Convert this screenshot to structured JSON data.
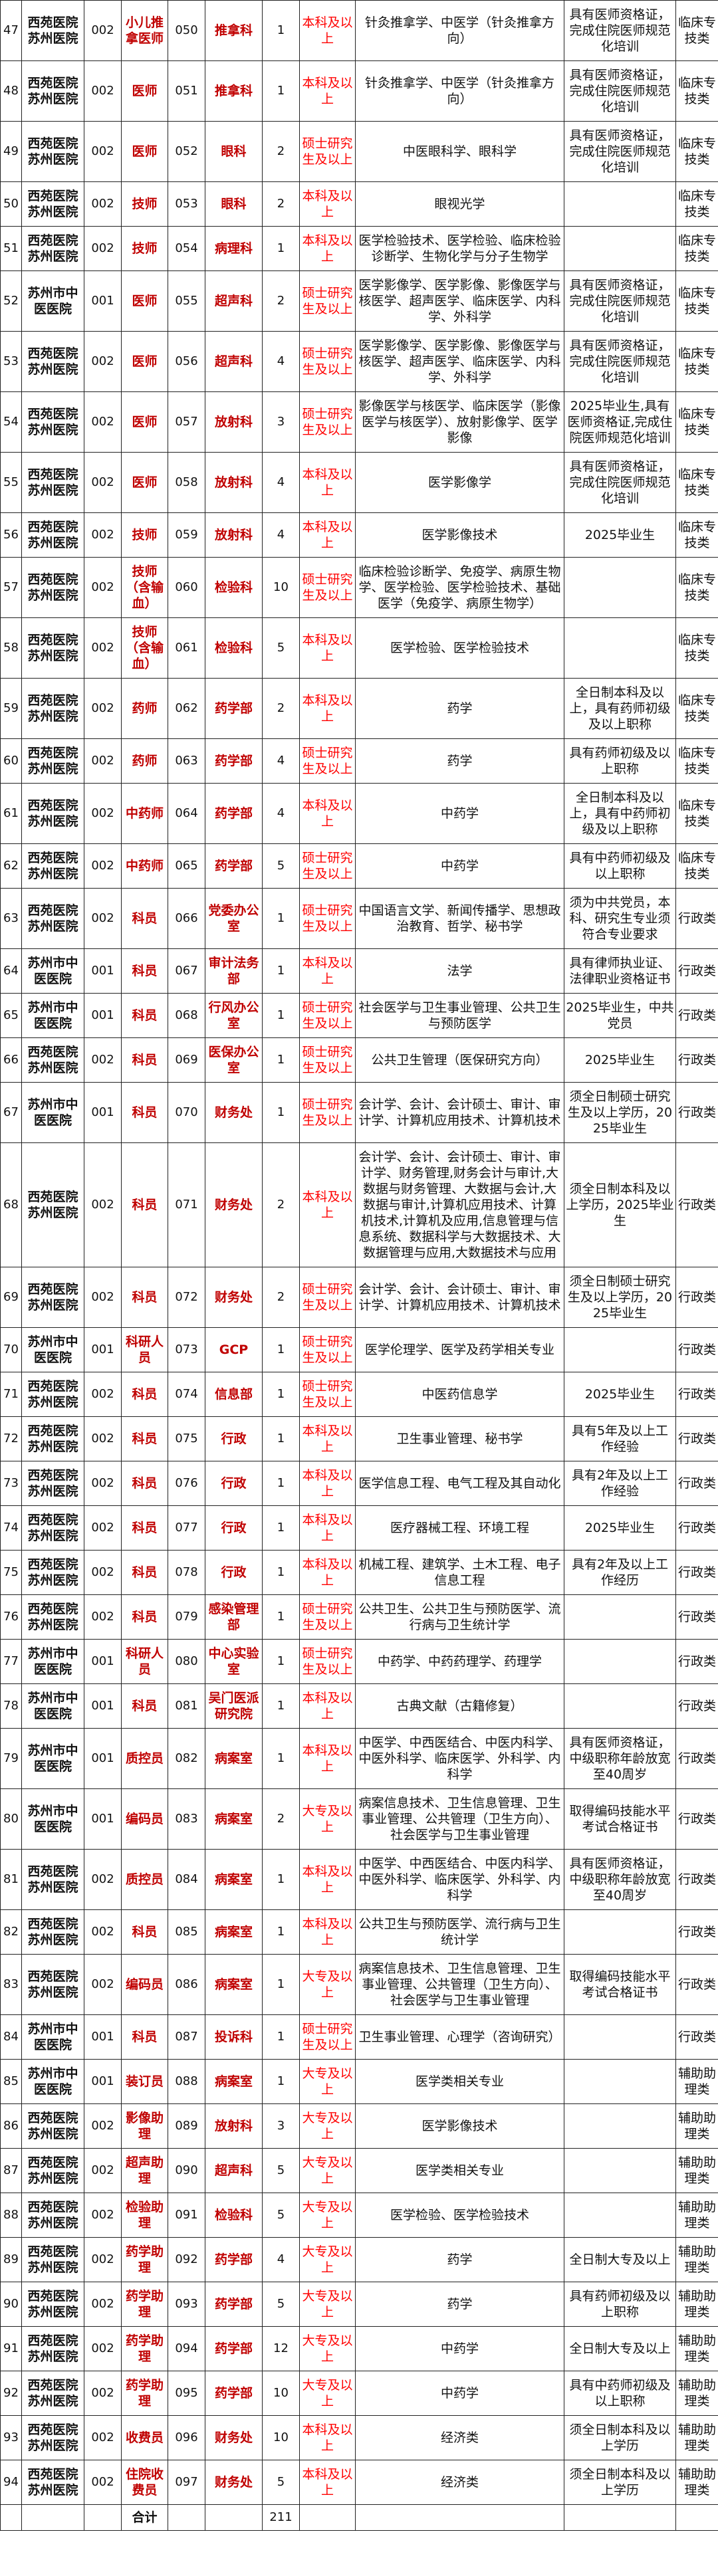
{
  "rows": [
    {
      "no": "47",
      "hospital": "西苑医院苏州医院",
      "hospital_code": "002",
      "position": "小儿推拿医师",
      "position_code": "050",
      "department": "推拿科",
      "count": "1",
      "education": "本科及以上",
      "major": "针灸推拿学、中医学（针灸推拿方向）",
      "remark": "具有医师资格证，完成住院医师规范化培训",
      "category": "临床专技类"
    },
    {
      "no": "48",
      "hospital": "西苑医院苏州医院",
      "hospital_code": "002",
      "position": "医师",
      "position_code": "051",
      "department": "推拿科",
      "count": "1",
      "education": "本科及以上",
      "major": "针灸推拿学、中医学（针灸推拿方向）",
      "remark": "具有医师资格证，完成住院医师规范化培训",
      "category": "临床专技类"
    },
    {
      "no": "49",
      "hospital": "西苑医院苏州医院",
      "hospital_code": "002",
      "position": "医师",
      "position_code": "052",
      "department": "眼科",
      "count": "2",
      "education": "硕士研究生及以上",
      "major": "中医眼科学、眼科学",
      "remark": "具有医师资格证，完成住院医师规范化培训",
      "category": "临床专技类"
    },
    {
      "no": "50",
      "hospital": "西苑医院苏州医院",
      "hospital_code": "002",
      "position": "技师",
      "position_code": "053",
      "department": "眼科",
      "count": "2",
      "education": "本科及以上",
      "major": "眼视光学",
      "remark": "",
      "category": "临床专技类"
    },
    {
      "no": "51",
      "hospital": "西苑医院苏州医院",
      "hospital_code": "002",
      "position": "技师",
      "position_code": "054",
      "department": "病理科",
      "count": "1",
      "education": "本科及以上",
      "major": "医学检验技术、医学检验、临床检验诊断学、生物化学与分子生物学",
      "remark": "",
      "category": "临床专技类"
    },
    {
      "no": "52",
      "hospital": "苏州市中医医院",
      "hospital_code": "001",
      "position": "医师",
      "position_code": "055",
      "department": "超声科",
      "count": "2",
      "education": "硕士研究生及以上",
      "major": "医学影像学、医学影像、影像医学与核医学、超声医学、临床医学、内科学、外科学",
      "remark": "具有医师资格证，完成住院医师规范化培训",
      "category": "临床专技类"
    },
    {
      "no": "53",
      "hospital": "西苑医院苏州医院",
      "hospital_code": "002",
      "position": "医师",
      "position_code": "056",
      "department": "超声科",
      "count": "4",
      "education": "硕士研究生及以上",
      "major": "医学影像学、医学影像、影像医学与核医学、超声医学、临床医学、内科学、外科学",
      "remark": "具有医师资格证，完成住院医师规范化培训",
      "category": "临床专技类"
    },
    {
      "no": "54",
      "hospital": "西苑医院苏州医院",
      "hospital_code": "002",
      "position": "医师",
      "position_code": "057",
      "department": "放射科",
      "count": "3",
      "education": "硕士研究生及以上",
      "major": "影像医学与核医学、临床医学（影像医学与核医学）、放射影像学、医学影像",
      "remark": "2025毕业生,具有医师资格证,完成住院医师规范化培训",
      "category": "临床专技类"
    },
    {
      "no": "55",
      "hospital": "西苑医院苏州医院",
      "hospital_code": "002",
      "position": "医师",
      "position_code": "058",
      "department": "放射科",
      "count": "4",
      "education": "本科及以上",
      "major": "医学影像学",
      "remark": "具有医师资格证，完成住院医师规范化培训",
      "category": "临床专技类"
    },
    {
      "no": "56",
      "hospital": "西苑医院苏州医院",
      "hospital_code": "002",
      "position": "技师",
      "position_code": "059",
      "department": "放射科",
      "count": "4",
      "education": "本科及以上",
      "major": "医学影像技术",
      "remark": "2025毕业生",
      "category": "临床专技类"
    },
    {
      "no": "57",
      "hospital": "西苑医院苏州医院",
      "hospital_code": "002",
      "position": "技师（含输血）",
      "position_code": "060",
      "department": "检验科",
      "count": "10",
      "education": "硕士研究生及以上",
      "major": "临床检验诊断学、免疫学、病原生物学、医学检验、医学检验技术、基础医学（免疫学、病原生物学）",
      "remark": "",
      "category": "临床专技类"
    },
    {
      "no": "58",
      "hospital": "西苑医院苏州医院",
      "hospital_code": "002",
      "position": "技师（含输血）",
      "position_code": "061",
      "department": "检验科",
      "count": "5",
      "education": "本科及以上",
      "major": "医学检验、医学检验技术",
      "remark": "",
      "category": "临床专技类"
    },
    {
      "no": "59",
      "hospital": "西苑医院苏州医院",
      "hospital_code": "002",
      "position": "药师",
      "position_code": "062",
      "department": "药学部",
      "count": "2",
      "education": "本科及以上",
      "major": "药学",
      "remark": "全日制本科及以上，具有药师初级及以上职称",
      "category": "临床专技类"
    },
    {
      "no": "60",
      "hospital": "西苑医院苏州医院",
      "hospital_code": "002",
      "position": "药师",
      "position_code": "063",
      "department": "药学部",
      "count": "4",
      "education": "硕士研究生及以上",
      "major": "药学",
      "remark": "具有药师初级及以上职称",
      "category": "临床专技类"
    },
    {
      "no": "61",
      "hospital": "西苑医院苏州医院",
      "hospital_code": "002",
      "position": "中药师",
      "position_code": "064",
      "department": "药学部",
      "count": "4",
      "education": "本科及以上",
      "major": "中药学",
      "remark": "全日制本科及以上，具有中药师初级及以上职称",
      "category": "临床专技类"
    },
    {
      "no": "62",
      "hospital": "西苑医院苏州医院",
      "hospital_code": "002",
      "position": "中药师",
      "position_code": "065",
      "department": "药学部",
      "count": "5",
      "education": "硕士研究生及以上",
      "major": "中药学",
      "remark": "具有中药师初级及以上职称",
      "category": "临床专技类"
    },
    {
      "no": "63",
      "hospital": "西苑医院苏州医院",
      "hospital_code": "002",
      "position": "科员",
      "position_code": "066",
      "department": "党委办公室",
      "count": "1",
      "education": "硕士研究生及以上",
      "major": "中国语言文学、新闻传播学、思想政治教育、哲学、秘书学",
      "remark": "须为中共党员，本科、研究生专业须符合专业要求",
      "category": "行政类"
    },
    {
      "no": "64",
      "hospital": "苏州市中医医院",
      "hospital_code": "001",
      "position": "科员",
      "position_code": "067",
      "department": "审计法务部",
      "count": "1",
      "education": "本科及以上",
      "major": "法学",
      "remark": "具有律师执业证、法律职业资格证书",
      "category": "行政类"
    },
    {
      "no": "65",
      "hospital": "苏州市中医医院",
      "hospital_code": "001",
      "position": "科员",
      "position_code": "068",
      "department": "行风办公室",
      "count": "1",
      "education": "硕士研究生及以上",
      "major": "社会医学与卫生事业管理、公共卫生与预防医学",
      "remark": "2025毕业生，中共党员",
      "category": "行政类"
    },
    {
      "no": "66",
      "hospital": "西苑医院苏州医院",
      "hospital_code": "002",
      "position": "科员",
      "position_code": "069",
      "department": "医保办公室",
      "count": "1",
      "education": "硕士研究生及以上",
      "major": "公共卫生管理（医保研究方向）",
      "remark": "2025毕业生",
      "category": "行政类"
    },
    {
      "no": "67",
      "hospital": "苏州市中医医院",
      "hospital_code": "001",
      "position": "科员",
      "position_code": "070",
      "department": "财务处",
      "count": "1",
      "education": "硕士研究生及以上",
      "major": "会计学、会计、会计硕士、审计、审计学、计算机应用技术、计算机技术",
      "remark": "须全日制硕士研究生及以上学历，2025毕业生",
      "category": "行政类"
    },
    {
      "no": "68",
      "hospital": "西苑医院苏州医院",
      "hospital_code": "002",
      "position": "科员",
      "position_code": "071",
      "department": "财务处",
      "count": "2",
      "education": "本科及以上",
      "major": "会计学、会计、会计硕士、审计、审计学、财务管理,财务会计与审计,大数据与财务管理、大数据与会计,大数据与审计,计算机应用技术、计算机技术,计算机及应用,信息管理与信息系统、数据科学与大数据技术、大数据管理与应用,大数据技术与应用",
      "remark": "须全日制本科及以上学历，2025毕业生",
      "category": "行政类"
    },
    {
      "no": "69",
      "hospital": "西苑医院苏州医院",
      "hospital_code": "002",
      "position": "科员",
      "position_code": "072",
      "department": "财务处",
      "count": "2",
      "education": "硕士研究生及以上",
      "major": "会计学、会计、会计硕士、审计、审计学、计算机应用技术、计算机技术",
      "remark": "须全日制硕士研究生及以上学历，2025毕业生",
      "category": "行政类"
    },
    {
      "no": "70",
      "hospital": "苏州市中医医院",
      "hospital_code": "001",
      "position": "科研人员",
      "position_code": "073",
      "department": "GCP",
      "count": "1",
      "education": "硕士研究生及以上",
      "major": "医学伦理学、医学及药学相关专业",
      "remark": "",
      "category": "行政类"
    },
    {
      "no": "71",
      "hospital": "西苑医院苏州医院",
      "hospital_code": "002",
      "position": "科员",
      "position_code": "074",
      "department": "信息部",
      "count": "1",
      "education": "硕士研究生及以上",
      "major": "中医药信息学",
      "remark": "2025毕业生",
      "category": "行政类"
    },
    {
      "no": "72",
      "hospital": "西苑医院苏州医院",
      "hospital_code": "002",
      "position": "科员",
      "position_code": "075",
      "department": "行政",
      "count": "1",
      "education": "本科及以上",
      "major": "卫生事业管理、秘书学",
      "remark": "具有5年及以上工作经验",
      "category": "行政类"
    },
    {
      "no": "73",
      "hospital": "西苑医院苏州医院",
      "hospital_code": "002",
      "position": "科员",
      "position_code": "076",
      "department": "行政",
      "count": "1",
      "education": "本科及以上",
      "major": "医学信息工程、电气工程及其自动化",
      "remark": "具有2年及以上工作经验",
      "category": "行政类"
    },
    {
      "no": "74",
      "hospital": "西苑医院苏州医院",
      "hospital_code": "002",
      "position": "科员",
      "position_code": "077",
      "department": "行政",
      "count": "1",
      "education": "本科及以上",
      "major": "医疗器械工程、环境工程",
      "remark": "2025毕业生",
      "category": "行政类"
    },
    {
      "no": "75",
      "hospital": "西苑医院苏州医院",
      "hospital_code": "002",
      "position": "科员",
      "position_code": "078",
      "department": "行政",
      "count": "1",
      "education": "本科及以上",
      "major": "机械工程、建筑学、土木工程、电子信息工程",
      "remark": "具有2年及以上工作经历",
      "category": "行政类"
    },
    {
      "no": "76",
      "hospital": "西苑医院苏州医院",
      "hospital_code": "002",
      "position": "科员",
      "position_code": "079",
      "department": "感染管理部",
      "count": "1",
      "education": "硕士研究生及以上",
      "major": "公共卫生、公共卫生与预防医学、流行病与卫生统计学",
      "remark": "",
      "category": "行政类"
    },
    {
      "no": "77",
      "hospital": "苏州市中医医院",
      "hospital_code": "001",
      "position": "科研人员",
      "position_code": "080",
      "department": "中心实验室",
      "count": "1",
      "education": "硕士研究生及以上",
      "major": "中药学、中药药理学、药理学",
      "remark": "",
      "category": "行政类"
    },
    {
      "no": "78",
      "hospital": "苏州市中医医院",
      "hospital_code": "001",
      "position": "科员",
      "position_code": "081",
      "department": "吴门医派研究院",
      "count": "1",
      "education": "本科及以上",
      "major": "古典文献（古籍修复）",
      "remark": "",
      "category": "行政类"
    },
    {
      "no": "79",
      "hospital": "苏州市中医医院",
      "hospital_code": "001",
      "position": "质控员",
      "position_code": "082",
      "department": "病案室",
      "count": "1",
      "education": "本科及以上",
      "major": "中医学、中西医结合、中医内科学、中医外科学、临床医学、外科学、内科学",
      "remark": "具有医师资格证，中级职称年龄放宽至40周岁",
      "category": "行政类"
    },
    {
      "no": "80",
      "hospital": "苏州市中医医院",
      "hospital_code": "001",
      "position": "编码员",
      "position_code": "083",
      "department": "病案室",
      "count": "2",
      "education": "大专及以上",
      "major": "病案信息技术、卫生信息管理、卫生事业管理、公共管理（卫生方向）、社会医学与卫生事业管理",
      "remark": "取得编码技能水平考试合格证书",
      "category": "行政类"
    },
    {
      "no": "81",
      "hospital": "西苑医院苏州医院",
      "hospital_code": "002",
      "position": "质控员",
      "position_code": "084",
      "department": "病案室",
      "count": "1",
      "education": "本科及以上",
      "major": "中医学、中西医结合、中医内科学、中医外科学、临床医学、外科学、内科学",
      "remark": "具有医师资格证，中级职称年龄放宽至40周岁",
      "category": "行政类"
    },
    {
      "no": "82",
      "hospital": "西苑医院苏州医院",
      "hospital_code": "002",
      "position": "科员",
      "position_code": "085",
      "department": "病案室",
      "count": "1",
      "education": "本科及以上",
      "major": "公共卫生与预防医学、流行病与卫生统计学",
      "remark": "",
      "category": "行政类"
    },
    {
      "no": "83",
      "hospital": "西苑医院苏州医院",
      "hospital_code": "002",
      "position": "编码员",
      "position_code": "086",
      "department": "病案室",
      "count": "1",
      "education": "大专及以上",
      "major": "病案信息技术、卫生信息管理、卫生事业管理、公共管理（卫生方向）、社会医学与卫生事业管理",
      "remark": "取得编码技能水平考试合格证书",
      "category": "行政类"
    },
    {
      "no": "84",
      "hospital": "苏州市中医医院",
      "hospital_code": "001",
      "position": "科员",
      "position_code": "087",
      "department": "投诉科",
      "count": "1",
      "education": "硕士研究生及以上",
      "major": "卫生事业管理、心理学（咨询研究）",
      "remark": "",
      "category": "行政类"
    },
    {
      "no": "85",
      "hospital": "苏州市中医医院",
      "hospital_code": "001",
      "position": "装订员",
      "position_code": "088",
      "department": "病案室",
      "count": "1",
      "education": "大专及以上",
      "major": "医学类相关专业",
      "remark": "",
      "category": "辅助助理类"
    },
    {
      "no": "86",
      "hospital": "西苑医院苏州医院",
      "hospital_code": "002",
      "position": "影像助理",
      "position_code": "089",
      "department": "放射科",
      "count": "3",
      "education": "大专及以上",
      "major": "医学影像技术",
      "remark": "",
      "category": "辅助助理类"
    },
    {
      "no": "87",
      "hospital": "西苑医院苏州医院",
      "hospital_code": "002",
      "position": "超声助理",
      "position_code": "090",
      "department": "超声科",
      "count": "5",
      "education": "大专及以上",
      "major": "医学类相关专业",
      "remark": "",
      "category": "辅助助理类"
    },
    {
      "no": "88",
      "hospital": "西苑医院苏州医院",
      "hospital_code": "002",
      "position": "检验助理",
      "position_code": "091",
      "department": "检验科",
      "count": "5",
      "education": "大专及以上",
      "major": "医学检验、医学检验技术",
      "remark": "",
      "category": "辅助助理类"
    },
    {
      "no": "89",
      "hospital": "西苑医院苏州医院",
      "hospital_code": "002",
      "position": "药学助理",
      "position_code": "092",
      "department": "药学部",
      "count": "4",
      "education": "大专及以上",
      "major": "药学",
      "remark": "全日制大专及以上",
      "category": "辅助助理类"
    },
    {
      "no": "90",
      "hospital": "西苑医院苏州医院",
      "hospital_code": "002",
      "position": "药学助理",
      "position_code": "093",
      "department": "药学部",
      "count": "5",
      "education": "大专及以上",
      "major": "药学",
      "remark": "具有药师初级及以上职称",
      "category": "辅助助理类"
    },
    {
      "no": "91",
      "hospital": "西苑医院苏州医院",
      "hospital_code": "002",
      "position": "药学助理",
      "position_code": "094",
      "department": "药学部",
      "count": "12",
      "education": "大专及以上",
      "major": "中药学",
      "remark": "全日制大专及以上",
      "category": "辅助助理类"
    },
    {
      "no": "92",
      "hospital": "西苑医院苏州医院",
      "hospital_code": "002",
      "position": "药学助理",
      "position_code": "095",
      "department": "药学部",
      "count": "10",
      "education": "大专及以上",
      "major": "中药学",
      "remark": "具有中药师初级及以上职称",
      "category": "辅助助理类"
    },
    {
      "no": "93",
      "hospital": "西苑医院苏州医院",
      "hospital_code": "002",
      "position": "收费员",
      "position_code": "096",
      "department": "财务处",
      "count": "10",
      "education": "本科及以上",
      "major": "经济类",
      "remark": "须全日制本科及以上学历",
      "category": "辅助助理类"
    },
    {
      "no": "94",
      "hospital": "西苑医院苏州医院",
      "hospital_code": "002",
      "position": "住院收费员",
      "position_code": "097",
      "department": "财务处",
      "count": "5",
      "education": "本科及以上",
      "major": "经济类",
      "remark": "须全日制本科及以上学历",
      "category": "辅助助理类"
    }
  ],
  "total": {
    "label": "合计",
    "count": "211"
  },
  "colors": {
    "position_text": "#c00000",
    "education_text": "#ff0000",
    "border": "#222222"
  }
}
